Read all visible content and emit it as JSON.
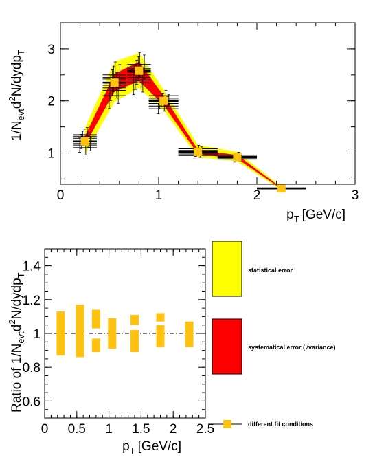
{
  "chart_data": [
    {
      "type": "scatter",
      "xlabel": "p",
      "xlabel_sub": "T",
      "xlabel_unit": "[GeV/c]",
      "ylabel_parts": [
        "1/N",
        "evt",
        "d",
        "2",
        "N/dydp",
        "T"
      ],
      "xlim": [
        0,
        3
      ],
      "ylim": [
        0.4,
        3.5
      ],
      "x_ticks": [
        0,
        1,
        2,
        3
      ],
      "y_ticks": [
        1,
        2,
        3
      ],
      "grid": false,
      "band_stat_color": "#ffff00",
      "band_sys_color": "#ff0000",
      "marker_color": "#ffc20e",
      "points": [
        {
          "x": 0.25,
          "y": 1.22,
          "xerr": 0.12,
          "yerr": 0.25
        },
        {
          "x": 0.55,
          "y": 2.35,
          "xerr": 0.12,
          "yerr": 0.45
        },
        {
          "x": 0.8,
          "y": 2.58,
          "xerr": 0.12,
          "yerr": 0.42
        },
        {
          "x": 1.05,
          "y": 2.0,
          "xerr": 0.15,
          "yerr": 0.18
        },
        {
          "x": 1.4,
          "y": 1.02,
          "xerr": 0.2,
          "yerr": 0.12
        },
        {
          "x": 1.8,
          "y": 0.92,
          "xerr": 0.2,
          "yerr": 0.1
        },
        {
          "x": 2.25,
          "y": 0.32,
          "xerr": 0.25,
          "yerr": 0.03
        }
      ],
      "stat_band": [
        {
          "x": 0.25,
          "lo": 0.98,
          "hi": 1.48
        },
        {
          "x": 0.55,
          "lo": 1.98,
          "hi": 2.75
        },
        {
          "x": 0.8,
          "lo": 2.25,
          "hi": 2.92
        },
        {
          "x": 1.05,
          "lo": 1.82,
          "hi": 2.22
        },
        {
          "x": 1.4,
          "lo": 0.92,
          "hi": 1.15
        },
        {
          "x": 1.8,
          "lo": 0.84,
          "hi": 1.02
        },
        {
          "x": 2.25,
          "lo": 0.29,
          "hi": 0.35
        }
      ],
      "sys_band": [
        {
          "x": 0.25,
          "lo": 1.15,
          "hi": 1.32
        },
        {
          "x": 0.55,
          "lo": 2.18,
          "hi": 2.52
        },
        {
          "x": 0.8,
          "lo": 2.38,
          "hi": 2.75
        },
        {
          "x": 1.05,
          "lo": 1.92,
          "hi": 2.1
        },
        {
          "x": 1.4,
          "lo": 0.98,
          "hi": 1.06
        },
        {
          "x": 1.8,
          "lo": 0.89,
          "hi": 0.96
        },
        {
          "x": 2.25,
          "lo": 0.31,
          "hi": 0.33
        }
      ],
      "fit_variations": [
        [
          1.15,
          1.22,
          1.28,
          1.32,
          1.1,
          1.35,
          1.25,
          1.18
        ],
        [
          2.1,
          2.25,
          2.35,
          2.42,
          2.5,
          2.3,
          2.2,
          2.45
        ],
        [
          2.35,
          2.45,
          2.55,
          2.62,
          2.7,
          2.5,
          2.4,
          2.65
        ],
        [
          1.85,
          1.95,
          2.0,
          2.05,
          1.9,
          2.1,
          1.98,
          2.02
        ],
        [
          0.95,
          1.0,
          1.03,
          1.08,
          0.98,
          1.05
        ],
        [
          0.88,
          0.91,
          0.94,
          0.96,
          0.9
        ],
        [
          0.31,
          0.32,
          0.33
        ]
      ]
    },
    {
      "type": "bar",
      "xlabel": "p",
      "xlabel_sub": "T",
      "xlabel_unit": "[GeV/c]",
      "ylabel_parts": [
        "Ratio of 1/N",
        "evt",
        "d",
        "2",
        "N/dydp",
        "T"
      ],
      "xlim": [
        0,
        2.5
      ],
      "ylim": [
        0.5,
        1.5
      ],
      "x_ticks": [
        "0",
        "0.5",
        "1",
        "1.5",
        "2",
        "2.5"
      ],
      "y_ticks": [
        "0.6",
        "0.8",
        "1",
        "1.2",
        "1.4"
      ],
      "reference_line": 1.0,
      "bar_color": "#ffc20e",
      "ratio_bars": [
        {
          "x": 0.25,
          "lo": 0.87,
          "hi": 1.13,
          "gap": null
        },
        {
          "x": 0.55,
          "lo": 0.86,
          "hi": 1.17,
          "gap": null
        },
        {
          "x": 0.8,
          "lo": 0.89,
          "hi": 1.14,
          "gap": [
            0.97,
            1.03
          ]
        },
        {
          "x": 1.05,
          "lo": 0.91,
          "hi": 1.09,
          "gap": null
        },
        {
          "x": 1.4,
          "lo": 0.89,
          "hi": 1.11,
          "gap": [
            1.02,
            1.05
          ]
        },
        {
          "x": 1.8,
          "lo": 0.92,
          "hi": 1.12,
          "gap": [
            1.05,
            1.07
          ]
        },
        {
          "x": 2.25,
          "lo": 0.92,
          "hi": 1.07,
          "gap": null
        }
      ]
    }
  ],
  "legend": {
    "items": [
      {
        "label": "statistical error",
        "color": "#ffff00"
      },
      {
        "label": "systematical error (",
        "sqrt_label": "variance",
        "label_end": ")",
        "color": "#ff0000"
      },
      {
        "label": "different fit conditions",
        "color": "#ffc20e"
      }
    ]
  }
}
